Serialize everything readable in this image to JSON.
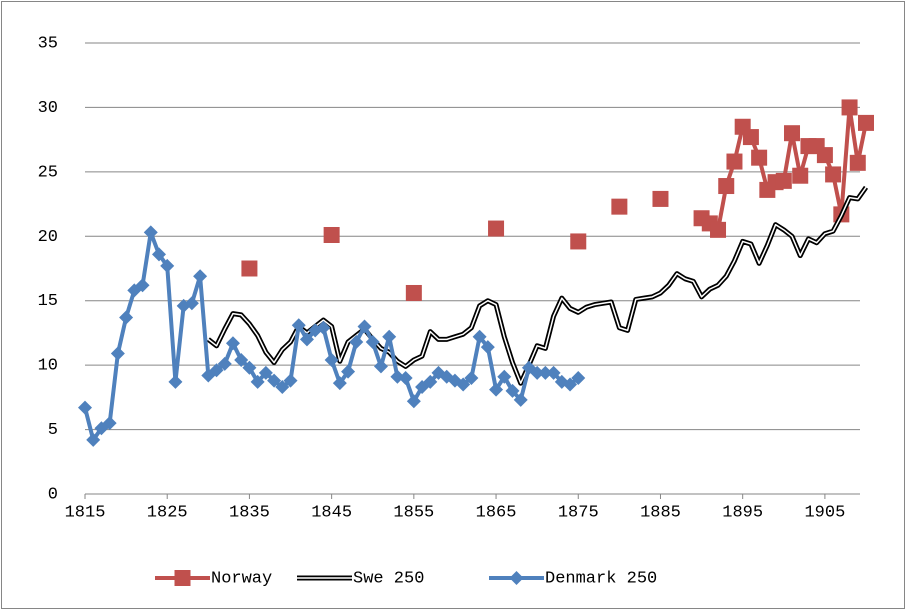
{
  "chart_data": {
    "type": "line",
    "x": [
      1815,
      1816,
      1817,
      1818,
      1819,
      1820,
      1821,
      1822,
      1823,
      1824,
      1825,
      1826,
      1827,
      1828,
      1829,
      1830,
      1831,
      1832,
      1833,
      1834,
      1835,
      1836,
      1837,
      1838,
      1839,
      1840,
      1841,
      1842,
      1843,
      1844,
      1845,
      1846,
      1847,
      1848,
      1849,
      1850,
      1851,
      1852,
      1853,
      1854,
      1855,
      1856,
      1857,
      1858,
      1859,
      1860,
      1861,
      1862,
      1863,
      1864,
      1865,
      1866,
      1867,
      1868,
      1869,
      1870,
      1871,
      1872,
      1873,
      1874,
      1875,
      1876,
      1877,
      1878,
      1879,
      1880,
      1881,
      1882,
      1883,
      1884,
      1885,
      1886,
      1887,
      1888,
      1889,
      1890,
      1891,
      1892,
      1893,
      1894,
      1895,
      1896,
      1897,
      1898,
      1899,
      1900,
      1901,
      1902,
      1903,
      1904,
      1905,
      1906,
      1907,
      1908,
      1909,
      1910
    ],
    "series": [
      {
        "name": "Norway",
        "color": "#c0504d",
        "marker": "square",
        "values": [
          null,
          null,
          null,
          null,
          null,
          null,
          null,
          null,
          null,
          null,
          null,
          null,
          null,
          null,
          null,
          null,
          null,
          null,
          null,
          null,
          17.5,
          null,
          null,
          null,
          null,
          null,
          null,
          null,
          null,
          null,
          20.1,
          null,
          null,
          null,
          null,
          null,
          null,
          null,
          null,
          null,
          15.6,
          null,
          null,
          null,
          null,
          null,
          null,
          null,
          null,
          null,
          20.6,
          null,
          null,
          null,
          null,
          null,
          null,
          null,
          null,
          null,
          19.6,
          null,
          null,
          null,
          null,
          22.3,
          null,
          null,
          null,
          null,
          22.9,
          null,
          null,
          null,
          null,
          21.4,
          21.0,
          20.5,
          23.9,
          25.8,
          28.5,
          27.7,
          26.1,
          23.6,
          24.2,
          24.3,
          28.0,
          24.7,
          27.0,
          27.0,
          26.3,
          24.8,
          21.7,
          30.0,
          25.7,
          28.8
        ]
      },
      {
        "name": "Swe 250",
        "color": "#000000",
        "marker": "none",
        "values": [
          null,
          null,
          null,
          null,
          null,
          null,
          null,
          null,
          null,
          null,
          null,
          null,
          null,
          null,
          null,
          12.0,
          11.5,
          12.8,
          14.0,
          13.9,
          13.2,
          12.3,
          11.0,
          10.2,
          11.2,
          11.8,
          13.0,
          12.5,
          13.0,
          13.5,
          13.0,
          10.3,
          11.8,
          12.3,
          12.8,
          12.0,
          11.3,
          11.0,
          10.3,
          9.9,
          10.4,
          10.7,
          12.6,
          12.0,
          12.0,
          12.2,
          12.4,
          12.9,
          14.6,
          15.0,
          14.7,
          12.2,
          10.2,
          8.6,
          10.0,
          11.5,
          11.3,
          13.8,
          15.2,
          14.4,
          14.1,
          14.5,
          14.7,
          14.8,
          14.9,
          12.9,
          12.7,
          15.1,
          15.2,
          15.3,
          15.6,
          16.2,
          17.1,
          16.7,
          16.5,
          15.3,
          15.9,
          16.2,
          16.9,
          18.1,
          19.6,
          19.4,
          17.9,
          19.3,
          20.9,
          20.5,
          20.0,
          18.5,
          19.8,
          19.5,
          20.2,
          20.4,
          21.6,
          23.0,
          22.9,
          23.8
        ]
      },
      {
        "name": "Denmark 250",
        "color": "#4f81bd",
        "marker": "diamond",
        "values": [
          6.7,
          4.2,
          5.1,
          5.5,
          10.9,
          13.7,
          15.8,
          16.2,
          20.3,
          18.6,
          17.7,
          8.7,
          14.6,
          14.8,
          16.9,
          9.2,
          9.6,
          10.1,
          11.7,
          10.4,
          9.8,
          8.7,
          9.4,
          8.8,
          8.3,
          8.8,
          13.1,
          12.0,
          12.7,
          12.9,
          10.4,
          8.6,
          9.5,
          11.8,
          13.0,
          11.8,
          9.9,
          12.2,
          9.1,
          9.0,
          7.2,
          8.3,
          8.7,
          9.4,
          9.1,
          8.8,
          8.5,
          9.0,
          12.2,
          11.4,
          8.1,
          9.1,
          8.0,
          7.3,
          9.8,
          9.4,
          9.4,
          9.4,
          8.7,
          8.5,
          9.0,
          null,
          null,
          null,
          null,
          null,
          null,
          null,
          null,
          null,
          null,
          null,
          null,
          null,
          null,
          null,
          null,
          null,
          null,
          null,
          null,
          null,
          null,
          null,
          null,
          null,
          null,
          null,
          null,
          null,
          null,
          null,
          null,
          null,
          null,
          null
        ]
      }
    ],
    "xlim": [
      1815,
      1910
    ],
    "xticks": [
      1815,
      1825,
      1835,
      1845,
      1855,
      1865,
      1875,
      1885,
      1895,
      1905
    ],
    "ylim": [
      0,
      35
    ],
    "yticks": [
      0,
      5,
      10,
      15,
      20,
      25,
      30,
      35
    ],
    "grid": true,
    "legend": "bottom"
  }
}
